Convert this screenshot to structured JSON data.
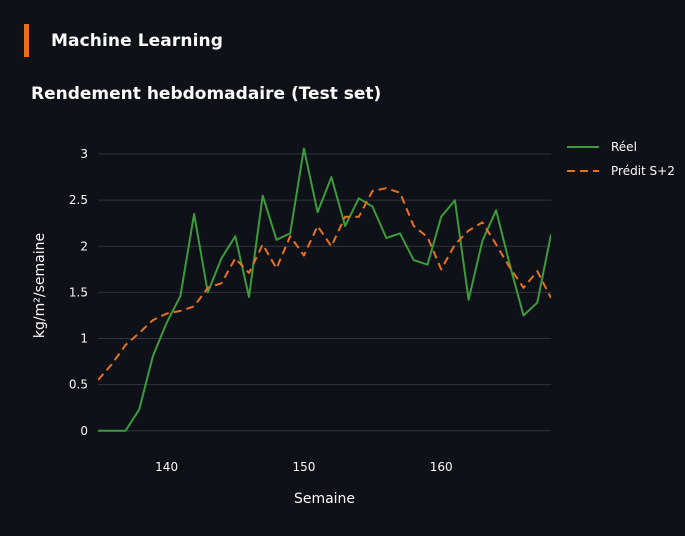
{
  "section": {
    "title": "Machine Learning",
    "accent_color": "#e8711f"
  },
  "chart_data": {
    "type": "line",
    "title": "Rendement hebdomadaire (Test set)",
    "xlabel": "Semaine",
    "ylabel": "kg/m²/semaine",
    "xlim": [
      135,
      168
    ],
    "ylim": [
      -0.1,
      3.25
    ],
    "xticks": [
      140,
      150,
      160
    ],
    "yticks": [
      0,
      0.5,
      1,
      1.5,
      2,
      2.5,
      3
    ],
    "ytick_labels": [
      "0",
      "0.5",
      "1",
      "1.5",
      "2",
      "2.5",
      "3"
    ],
    "grid": "horizontal",
    "legend_position": "top-right",
    "series": [
      {
        "name": "Réel",
        "color": "#3d9a3d",
        "dash": "solid",
        "x": [
          135,
          136,
          137,
          138,
          139,
          140,
          141,
          142,
          143,
          144,
          145,
          146,
          147,
          148,
          149,
          150,
          151,
          152,
          153,
          154,
          155,
          156,
          157,
          158,
          159,
          160,
          161,
          162,
          163,
          164,
          165,
          166,
          167,
          168
        ],
        "values": [
          0,
          0,
          0,
          0.23,
          0.81,
          1.17,
          1.46,
          2.35,
          1.5,
          1.87,
          2.11,
          1.45,
          2.55,
          2.07,
          2.14,
          3.06,
          2.37,
          2.75,
          2.22,
          2.52,
          2.43,
          2.09,
          2.14,
          1.85,
          1.8,
          2.32,
          2.5,
          1.42,
          2.06,
          2.39,
          1.8,
          1.25,
          1.39,
          2.13
        ]
      },
      {
        "name": "Prédit S+2",
        "color": "#e8711f",
        "dash": "dashed",
        "x": [
          135,
          136,
          137,
          138,
          139,
          140,
          141,
          142,
          143,
          144,
          145,
          146,
          147,
          148,
          149,
          150,
          151,
          152,
          153,
          154,
          155,
          156,
          157,
          158,
          159,
          160,
          161,
          162,
          163,
          164,
          165,
          166,
          167,
          168
        ],
        "values": [
          0.55,
          0.72,
          0.93,
          1.06,
          1.2,
          1.27,
          1.3,
          1.35,
          1.55,
          1.6,
          1.87,
          1.71,
          2.02,
          1.76,
          2.11,
          1.9,
          2.22,
          2.0,
          2.32,
          2.32,
          2.6,
          2.63,
          2.58,
          2.22,
          2.1,
          1.75,
          2.02,
          2.17,
          2.26,
          2.02,
          1.77,
          1.55,
          1.73,
          1.44
        ]
      }
    ]
  }
}
